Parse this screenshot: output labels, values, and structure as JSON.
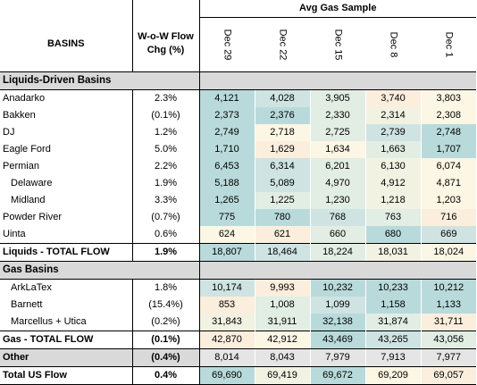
{
  "title": "Avg Gas Sample",
  "headers": {
    "basins": "BASINS",
    "chg_line1": "W-o-W Flow",
    "chg_line2": "Chg (%)"
  },
  "dates": [
    "Dec 29",
    "Dec 22",
    "Dec 15",
    "Dec 8",
    "Dec 1"
  ],
  "sections": [
    {
      "label": "Liquids-Driven Basins",
      "rows": [
        {
          "name": "Anadarko",
          "chg": "2.3%",
          "values": [
            "4,121",
            "4,028",
            "3,905",
            "3,740",
            "3,803"
          ],
          "shade": [
            1,
            2,
            3,
            6,
            5
          ],
          "indent": false
        },
        {
          "name": "Bakken",
          "chg": "(0.1%)",
          "values": [
            "2,373",
            "2,376",
            "2,330",
            "2,314",
            "2,308"
          ],
          "shade": [
            1,
            1,
            3,
            4,
            5
          ],
          "indent": false
        },
        {
          "name": "DJ",
          "chg": "1.2%",
          "values": [
            "2,749",
            "2,718",
            "2,725",
            "2,739",
            "2,748"
          ],
          "shade": [
            1,
            5,
            3,
            2,
            1
          ],
          "indent": false
        },
        {
          "name": "Eagle Ford",
          "chg": "5.0%",
          "values": [
            "1,710",
            "1,629",
            "1,634",
            "1,663",
            "1,707"
          ],
          "shade": [
            1,
            6,
            5,
            3,
            1
          ],
          "indent": false
        },
        {
          "name": "Permian",
          "chg": "2.2%",
          "values": [
            "6,453",
            "6,314",
            "6,201",
            "6,130",
            "6,074"
          ],
          "shade": [
            1,
            2,
            3,
            4,
            5
          ],
          "indent": false
        },
        {
          "name": "Delaware",
          "chg": "1.9%",
          "values": [
            "5,188",
            "5,089",
            "4,970",
            "4,912",
            "4,871"
          ],
          "shade": [
            1,
            2,
            3,
            4,
            5
          ],
          "indent": true
        },
        {
          "name": "Midland",
          "chg": "3.3%",
          "values": [
            "1,265",
            "1,225",
            "1,230",
            "1,218",
            "1,203"
          ],
          "shade": [
            1,
            3,
            3,
            4,
            5
          ],
          "indent": true
        },
        {
          "name": "Powder River",
          "chg": "(0.7%)",
          "values": [
            "775",
            "780",
            "768",
            "763",
            "716"
          ],
          "shade": [
            1,
            1,
            2,
            3,
            6
          ],
          "indent": false
        },
        {
          "name": "Uinta",
          "chg": "0.6%",
          "values": [
            "624",
            "621",
            "660",
            "680",
            "669"
          ],
          "shade": [
            5,
            6,
            3,
            1,
            2
          ],
          "indent": false
        }
      ],
      "total": {
        "name": "Liquids - TOTAL FLOW",
        "chg": "1.9%",
        "values": [
          "18,807",
          "18,464",
          "18,224",
          "18,031",
          "18,024"
        ],
        "shade": [
          1,
          2,
          3,
          4,
          5
        ]
      }
    },
    {
      "label": "Gas Basins",
      "rows": [
        {
          "name": "ArkLaTex",
          "chg": "1.8%",
          "values": [
            "10,174",
            "9,993",
            "10,232",
            "10,233",
            "10,212"
          ],
          "shade": [
            2,
            6,
            1,
            1,
            1
          ],
          "indent": true
        },
        {
          "name": "Barnett",
          "chg": "(15.4%)",
          "values": [
            "853",
            "1,008",
            "1,099",
            "1,158",
            "1,133"
          ],
          "shade": [
            6,
            3,
            2,
            1,
            1
          ],
          "indent": true
        },
        {
          "name": "Marcellus + Utica",
          "chg": "(0.2%)",
          "values": [
            "31,843",
            "31,911",
            "32,138",
            "31,874",
            "31,711"
          ],
          "shade": [
            4,
            3,
            1,
            3,
            6
          ],
          "indent": true
        }
      ],
      "total": {
        "name": "Gas - TOTAL FLOW",
        "chg": "(0.1%)",
        "values": [
          "42,870",
          "42,912",
          "43,469",
          "43,265",
          "43,056"
        ],
        "shade": [
          6,
          5,
          1,
          2,
          3
        ]
      }
    }
  ],
  "other": {
    "name": "Other",
    "chg": "(0.4%)",
    "values": [
      "8,014",
      "8,043",
      "7,979",
      "7,913",
      "7,977"
    ]
  },
  "us_total": {
    "name": "Total US Flow",
    "chg": "0.4%",
    "values": [
      "69,690",
      "69,419",
      "69,672",
      "69,209",
      "69,057"
    ],
    "shade": [
      1,
      4,
      1,
      5,
      6
    ]
  },
  "colors": {
    "strong": "#b9dadb",
    "weak": "#fbeedd",
    "section_grey": "#d9d9d9"
  }
}
